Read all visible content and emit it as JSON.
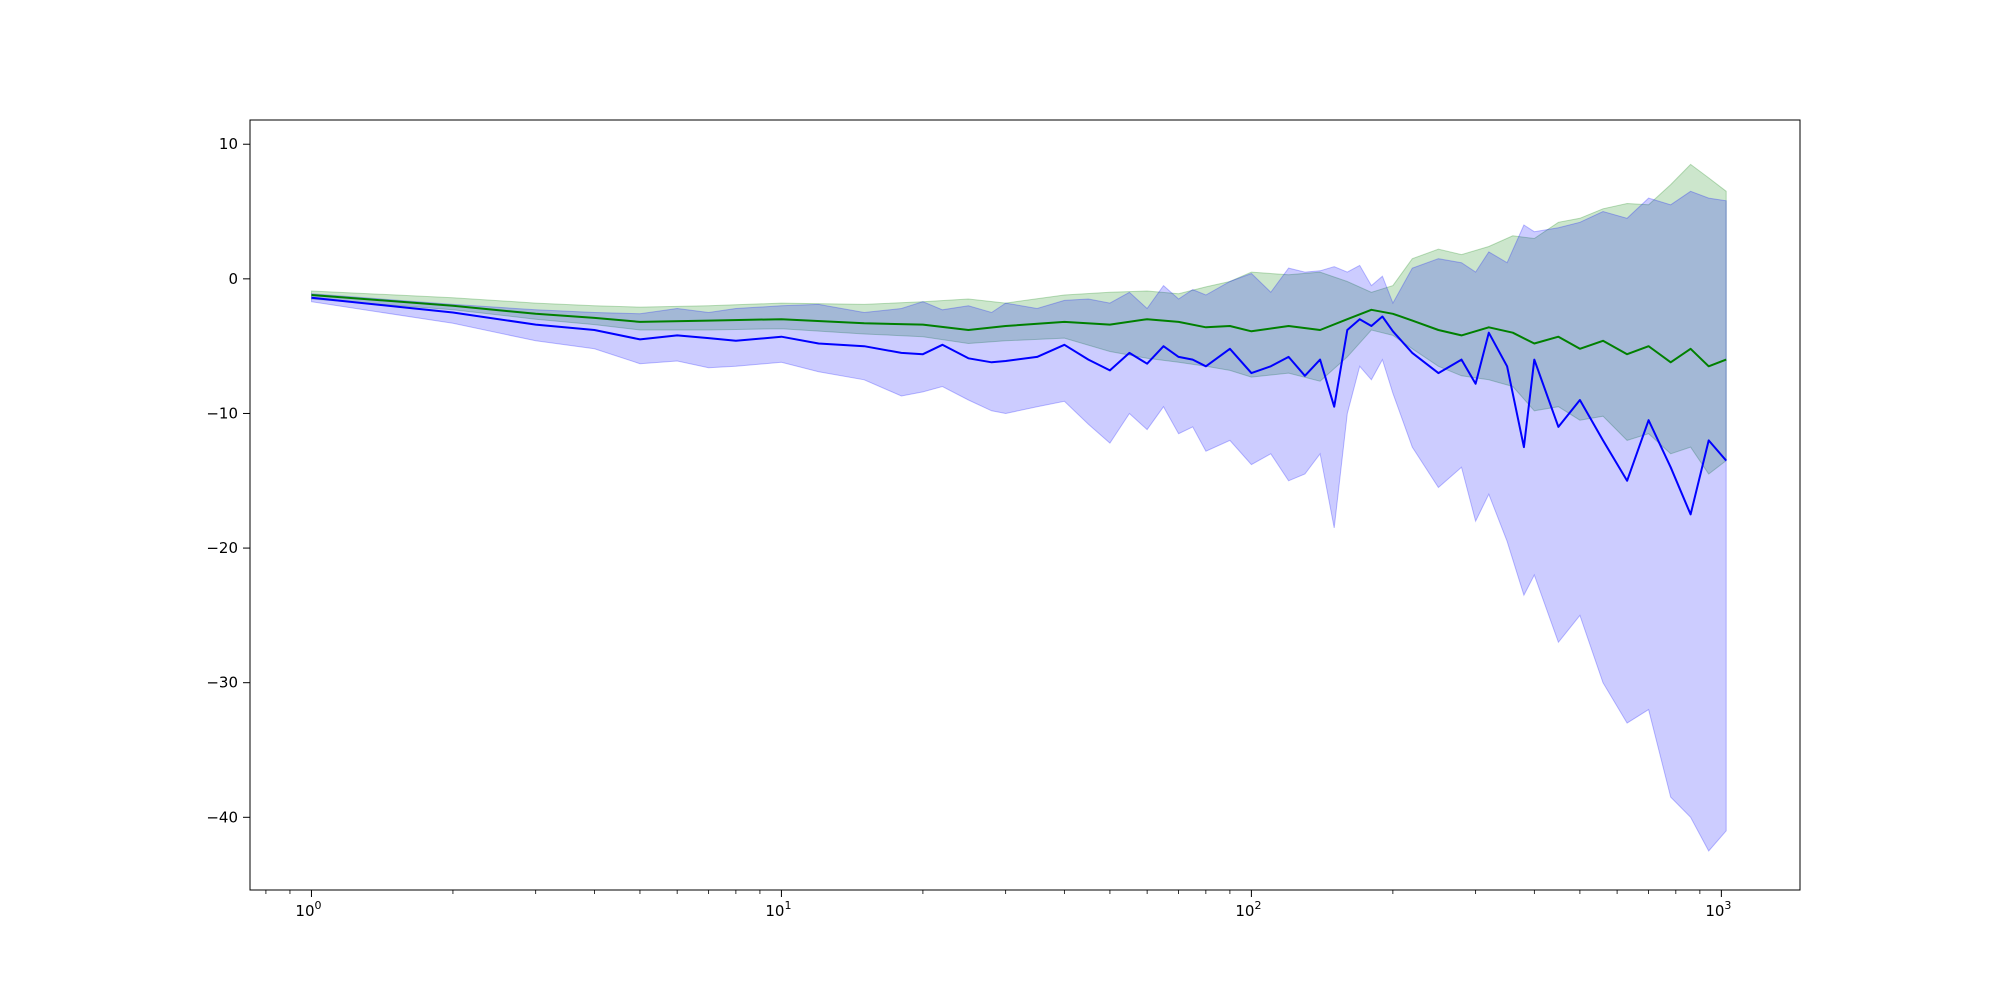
{
  "chart_data": {
    "type": "line",
    "title": "",
    "xlabel": "",
    "ylabel": "",
    "xscale": "log",
    "xlim": [
      0.74,
      1470
    ],
    "ylim": [
      -45.4,
      11.8
    ],
    "grid": false,
    "legend": "none",
    "xticks": [
      {
        "value": 1,
        "base": "10",
        "exp": "0"
      },
      {
        "value": 10,
        "base": "10",
        "exp": "1"
      },
      {
        "value": 100,
        "base": "10",
        "exp": "2"
      },
      {
        "value": 1000,
        "base": "10",
        "exp": "3"
      }
    ],
    "yticks": [
      {
        "value": 10,
        "label": "10"
      },
      {
        "value": 0,
        "label": "0"
      },
      {
        "value": -10,
        "label": "−10"
      },
      {
        "value": -20,
        "label": "−20"
      },
      {
        "value": -30,
        "label": "−30"
      },
      {
        "value": -40,
        "label": "−40"
      }
    ],
    "series": [
      {
        "color": "#008000",
        "x": [
          1,
          2,
          3,
          4,
          5,
          7,
          10,
          15,
          20,
          25,
          30,
          40,
          50,
          60,
          70,
          80,
          90,
          100,
          120,
          140,
          160,
          180,
          200,
          220,
          250,
          280,
          320,
          360,
          400,
          450,
          500,
          560,
          630,
          700,
          780,
          860,
          940,
          1024
        ],
        "mean": [
          -1.2,
          -2.0,
          -2.6,
          -2.9,
          -3.2,
          -3.1,
          -3.0,
          -3.3,
          -3.4,
          -3.8,
          -3.5,
          -3.2,
          -3.4,
          -3.0,
          -3.2,
          -3.6,
          -3.5,
          -3.9,
          -3.5,
          -3.8,
          -3.0,
          -2.3,
          -2.6,
          -3.1,
          -3.8,
          -4.2,
          -3.6,
          -4.0,
          -4.8,
          -4.3,
          -5.2,
          -4.6,
          -5.6,
          -5.0,
          -6.2,
          -5.2,
          -6.5,
          -6.0
        ],
        "upper": [
          -0.9,
          -1.4,
          -1.8,
          -2.0,
          -2.1,
          -2.0,
          -1.8,
          -1.9,
          -1.7,
          -1.5,
          -1.8,
          -1.2,
          -1.0,
          -0.9,
          -1.1,
          -0.6,
          -0.2,
          0.5,
          0.3,
          0.5,
          -0.2,
          -1.0,
          -0.5,
          1.5,
          2.2,
          1.8,
          2.4,
          3.2,
          3.0,
          4.2,
          4.5,
          5.2,
          5.6,
          5.5,
          7.0,
          8.5,
          7.5,
          6.5
        ],
        "lower": [
          -1.5,
          -2.3,
          -3.0,
          -3.4,
          -3.8,
          -3.8,
          -3.7,
          -4.1,
          -4.3,
          -4.8,
          -4.6,
          -4.4,
          -5.4,
          -5.9,
          -6.2,
          -6.5,
          -6.8,
          -7.3,
          -7.0,
          -7.6,
          -5.8,
          -3.8,
          -4.2,
          -5.2,
          -6.5,
          -7.2,
          -7.5,
          -8.0,
          -9.8,
          -9.5,
          -10.5,
          -10.2,
          -12.0,
          -11.5,
          -13.0,
          -12.5,
          -14.5,
          -13.5
        ]
      },
      {
        "color": "#0000ff",
        "x": [
          1,
          2,
          3,
          4,
          5,
          6,
          7,
          8,
          10,
          12,
          15,
          18,
          20,
          22,
          25,
          28,
          30,
          35,
          40,
          45,
          50,
          55,
          60,
          65,
          70,
          75,
          80,
          90,
          100,
          110,
          120,
          130,
          140,
          150,
          160,
          170,
          180,
          190,
          200,
          220,
          250,
          280,
          300,
          320,
          350,
          380,
          400,
          450,
          500,
          560,
          630,
          700,
          780,
          860,
          940,
          1024
        ],
        "mean": [
          -1.4,
          -2.5,
          -3.4,
          -3.8,
          -4.5,
          -4.2,
          -4.4,
          -4.6,
          -4.3,
          -4.8,
          -5.0,
          -5.5,
          -5.6,
          -4.9,
          -5.9,
          -6.2,
          -6.1,
          -5.8,
          -4.9,
          -6.0,
          -6.8,
          -5.5,
          -6.3,
          -5.0,
          -5.8,
          -6.0,
          -6.5,
          -5.2,
          -7.0,
          -6.5,
          -5.8,
          -7.2,
          -6.0,
          -9.5,
          -3.8,
          -3.0,
          -3.5,
          -2.8,
          -3.9,
          -5.5,
          -7.0,
          -6.0,
          -7.8,
          -4.0,
          -6.5,
          -12.5,
          -6.0,
          -11.0,
          -9.0,
          -12.0,
          -15.0,
          -10.5,
          -14.0,
          -17.5,
          -12.0,
          -13.5
        ],
        "upper": [
          -1.1,
          -1.9,
          -2.3,
          -2.5,
          -2.6,
          -2.2,
          -2.5,
          -2.2,
          -2.0,
          -1.9,
          -2.5,
          -2.2,
          -1.7,
          -2.3,
          -2.0,
          -2.5,
          -1.8,
          -2.2,
          -1.6,
          -1.5,
          -1.8,
          -1.0,
          -2.2,
          -0.5,
          -1.5,
          -0.8,
          -1.2,
          -0.2,
          0.4,
          -1.0,
          0.8,
          0.5,
          0.6,
          0.9,
          0.5,
          1.0,
          -0.5,
          0.2,
          -1.8,
          0.8,
          1.5,
          1.2,
          0.5,
          2.0,
          1.2,
          4.0,
          3.5,
          3.8,
          4.2,
          5.0,
          4.5,
          6.0,
          5.5,
          6.5,
          6.0,
          5.8
        ],
        "lower": [
          -1.7,
          -3.3,
          -4.6,
          -5.2,
          -6.3,
          -6.1,
          -6.6,
          -6.5,
          -6.2,
          -6.9,
          -7.5,
          -8.7,
          -8.4,
          -8.0,
          -9.0,
          -9.8,
          -10.0,
          -9.5,
          -9.1,
          -10.8,
          -12.2,
          -10.0,
          -11.2,
          -9.5,
          -11.5,
          -11.0,
          -12.8,
          -12.0,
          -13.8,
          -13.0,
          -15.0,
          -14.5,
          -13.0,
          -18.5,
          -10.0,
          -6.5,
          -7.5,
          -6.0,
          -8.5,
          -12.5,
          -15.5,
          -14.0,
          -18.0,
          -16.0,
          -19.5,
          -23.5,
          -22.0,
          -27.0,
          -25.0,
          -30.0,
          -33.0,
          -32.0,
          -38.5,
          -40.0,
          -42.5,
          -41.0
        ]
      }
    ]
  }
}
